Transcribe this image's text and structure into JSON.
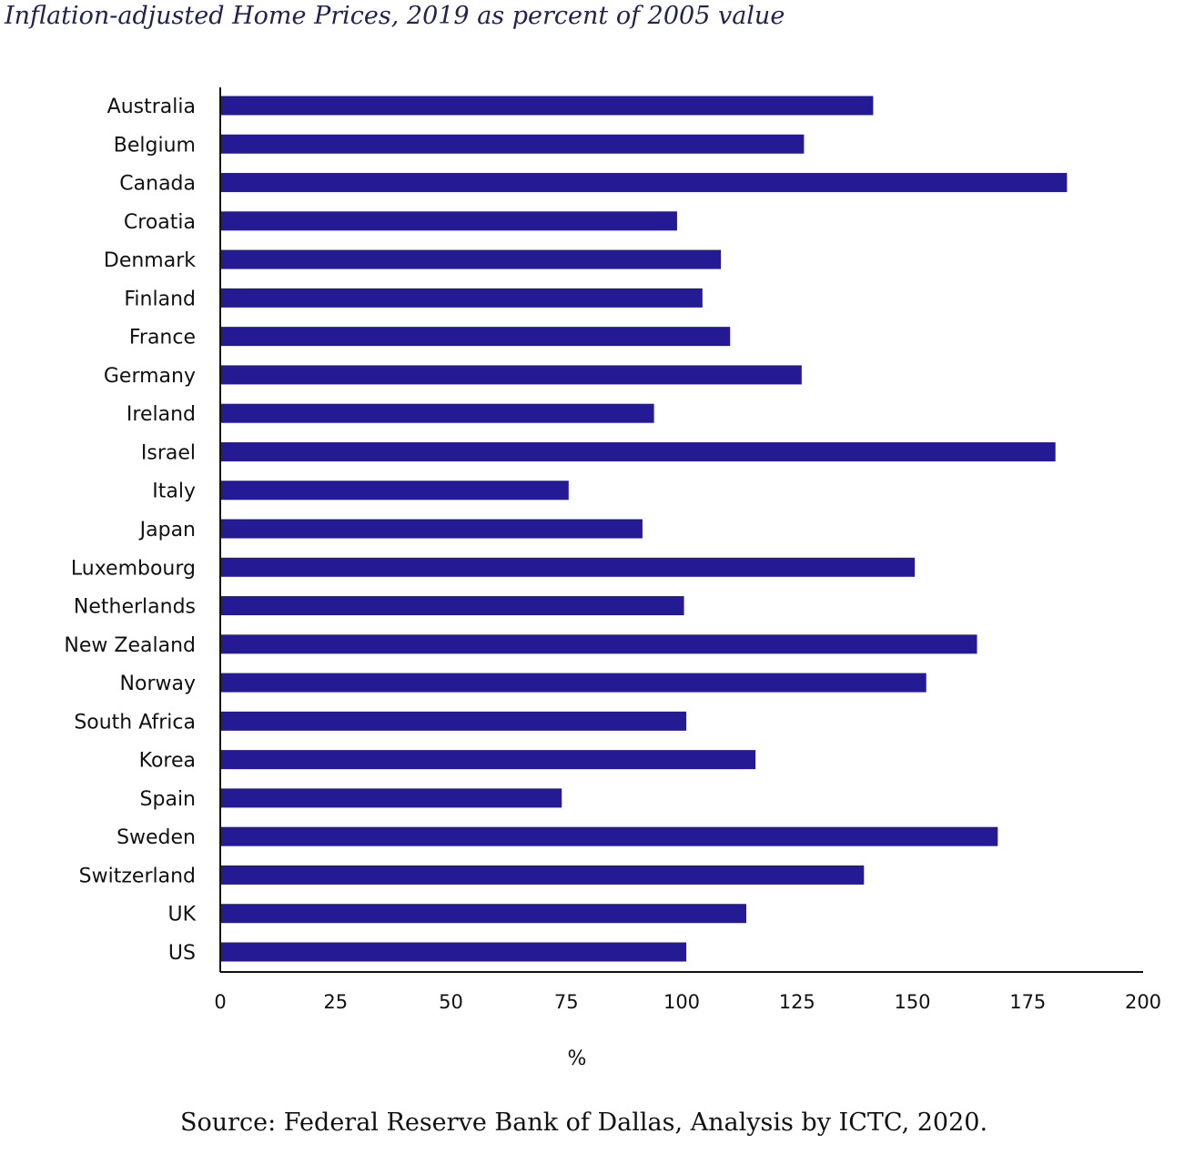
{
  "title": "Inflation-adjusted Home Prices, 2019 as percent of 2005 value",
  "source": "Source: Federal Reserve Bank of Dallas, Analysis by ICTC, 2020.",
  "colors": {
    "bar": "#241a93",
    "axis": "#111111",
    "title": "#1e2350"
  },
  "chart_data": {
    "type": "bar",
    "orientation": "horizontal",
    "title": "Inflation-adjusted Home Prices, 2019 as percent of 2005 value",
    "xlabel": "%",
    "ylabel": "",
    "xlim": [
      0,
      200
    ],
    "xticks": [
      0,
      25,
      50,
      75,
      100,
      125,
      150,
      175,
      200
    ],
    "grid": false,
    "categories": [
      "Australia",
      "Belgium",
      "Canada",
      "Croatia",
      "Denmark",
      "Finland",
      "France",
      "Germany",
      "Ireland",
      "Israel",
      "Italy",
      "Japan",
      "Luxembourg",
      "Netherlands",
      "New Zealand",
      "Norway",
      "South Africa",
      "Korea",
      "Spain",
      "Sweden",
      "Switzerland",
      "UK",
      "US"
    ],
    "values": [
      141.5,
      126.5,
      183.5,
      99,
      108.5,
      104.5,
      110.5,
      126,
      94,
      181,
      75.5,
      91.5,
      150.5,
      100.5,
      164,
      153,
      101,
      116,
      74,
      168.5,
      139.5,
      114,
      101
    ]
  }
}
